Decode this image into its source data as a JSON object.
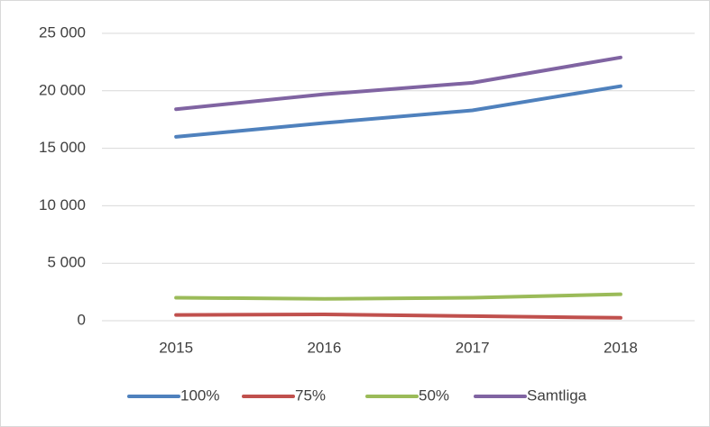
{
  "chart_data": {
    "type": "line",
    "categories": [
      "2015",
      "2016",
      "2017",
      "2018"
    ],
    "series": [
      {
        "name": "100%",
        "color": "#4f81bd",
        "values": [
          16000,
          17200,
          18300,
          20400
        ]
      },
      {
        "name": "75%",
        "color": "#c0504d",
        "values": [
          500,
          550,
          400,
          250
        ]
      },
      {
        "name": "50%",
        "color": "#9bbb59",
        "values": [
          2000,
          1900,
          2000,
          2300
        ]
      },
      {
        "name": "Samtliga",
        "color": "#8064a2",
        "values": [
          18400,
          19700,
          20700,
          22900
        ]
      }
    ],
    "ylim": [
      0,
      25000
    ],
    "yticks": [
      {
        "value": 0,
        "label": "0"
      },
      {
        "value": 5000,
        "label": "5 000"
      },
      {
        "value": 10000,
        "label": "10 000"
      },
      {
        "value": 15000,
        "label": "15 000"
      },
      {
        "value": 20000,
        "label": "20 000"
      },
      {
        "value": 25000,
        "label": "25 000"
      }
    ],
    "grid": true,
    "legend": "bottom"
  }
}
